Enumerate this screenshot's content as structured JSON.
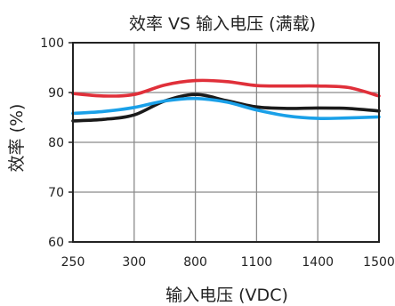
{
  "chart_data": {
    "type": "line",
    "title": "效率 VS 输入电压 (满载)",
    "xlabel": "输入电压 (VDC)",
    "ylabel": "效率 (%)",
    "categories": [
      "250",
      "300",
      "800",
      "1100",
      "1400",
      "1500"
    ],
    "ylim": [
      60,
      100
    ],
    "yticks": [
      "60",
      "70",
      "80",
      "90",
      "100"
    ],
    "grid": true,
    "series": [
      {
        "color": "#e0303a",
        "x": [
          0,
          0.5,
          1,
          1.5,
          2,
          2.5,
          3,
          3.5,
          4,
          4.5,
          5
        ],
        "values": [
          89.8,
          89.3,
          89.6,
          91.5,
          92.4,
          92.2,
          91.4,
          91.3,
          91.3,
          91.0,
          89.3
        ]
      },
      {
        "color": "#1a1a1a",
        "x": [
          0,
          0.5,
          1,
          1.5,
          2,
          2.5,
          3,
          3.5,
          4,
          4.5,
          5
        ],
        "values": [
          84.3,
          84.6,
          85.5,
          88.3,
          89.6,
          88.4,
          87.1,
          86.8,
          86.9,
          86.8,
          86.3
        ]
      },
      {
        "color": "#1aa0e8",
        "x": [
          0,
          0.5,
          1,
          1.5,
          2,
          2.5,
          3,
          3.5,
          4,
          4.5,
          5
        ],
        "values": [
          85.8,
          86.2,
          87.0,
          88.3,
          88.8,
          88.1,
          86.5,
          85.3,
          84.8,
          84.9,
          85.1
        ]
      }
    ]
  }
}
